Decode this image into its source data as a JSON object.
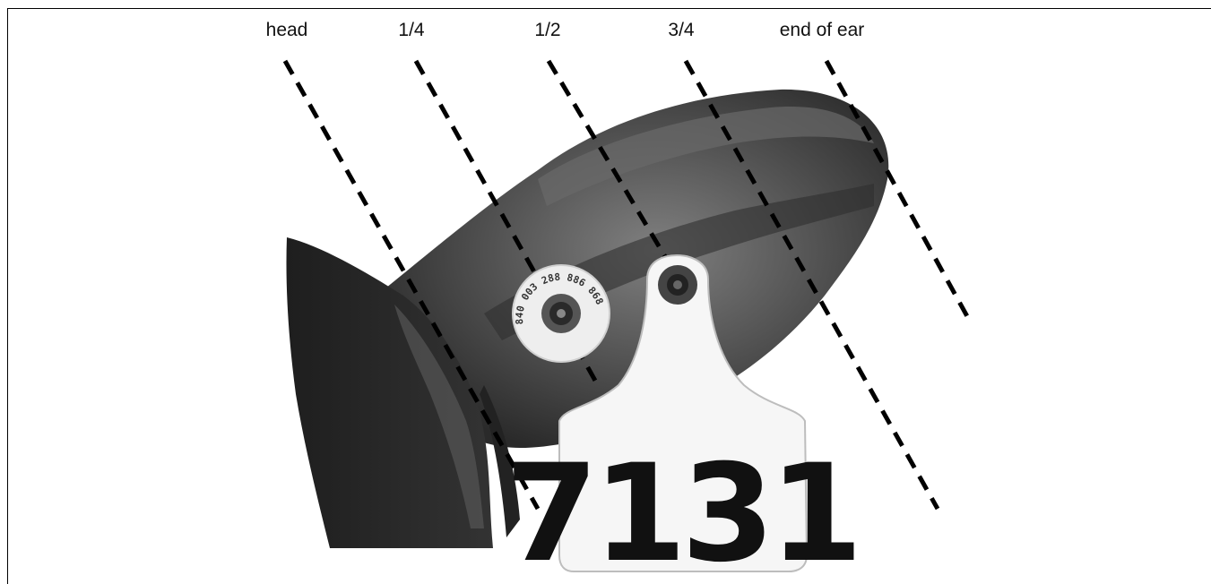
{
  "labels": {
    "head": "head",
    "quarter": "1/4",
    "half": "1/2",
    "three_quarter": "3/4",
    "end": "end of ear"
  },
  "tag": {
    "number": "7131"
  },
  "button_tag": {
    "text": "840 003 288 886 868"
  },
  "colors": {
    "line": "#000000",
    "ear_dark": "#2a2a2a",
    "ear_mid": "#5a5a5a",
    "tag": "#f4f4f4"
  }
}
